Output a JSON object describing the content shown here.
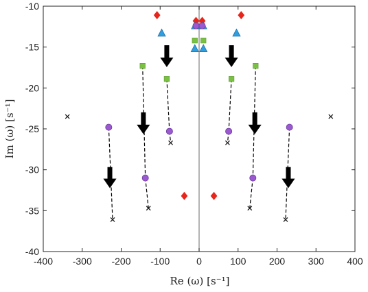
{
  "chart_data": {
    "type": "scatter",
    "xlabel": "Re (ω) [s⁻¹]",
    "ylabel": "Im (ω) [s⁻¹]",
    "xlim": [
      -400,
      400
    ],
    "ylim": [
      -40,
      -10
    ],
    "xticks": [
      -400,
      -300,
      -200,
      -100,
      0,
      100,
      200,
      300,
      400
    ],
    "yticks": [
      -10,
      -15,
      -20,
      -25,
      -30,
      -35,
      -40
    ],
    "grid": false,
    "zero_line_x": 0,
    "colors": {
      "red_diamond": "#e8251a",
      "blue_triangle": "#2f9fe0",
      "green_square": "#7ac143",
      "purple_circle": "#9b59d0",
      "cross": "#1a1a1a",
      "zero_line": "#8a8a8a",
      "arrow": "#000000"
    },
    "series": [
      {
        "marker": "diamond",
        "color": "#e8251a",
        "points": [
          [
            -108,
            -11.1
          ],
          [
            -8,
            -11.8
          ],
          [
            8,
            -11.8
          ],
          [
            108,
            -11.1
          ],
          [
            -38,
            -33.2
          ],
          [
            38,
            -33.2
          ]
        ]
      },
      {
        "marker": "triangle",
        "color": "#2f9fe0",
        "points": [
          [
            -96,
            -13.3
          ],
          [
            96,
            -13.3
          ],
          [
            -11,
            -15.2
          ],
          [
            11,
            -15.2
          ],
          [
            -10,
            -12.4
          ],
          [
            10,
            -12.4
          ]
        ]
      },
      {
        "marker": "square",
        "color": "#7ac143",
        "points": [
          [
            -145,
            -17.3
          ],
          [
            145,
            -17.3
          ],
          [
            -83,
            -18.9
          ],
          [
            83,
            -18.9
          ],
          [
            -11,
            -14.2
          ],
          [
            11,
            -14.2
          ]
        ]
      },
      {
        "marker": "circle",
        "color": "#9b59d0",
        "points": [
          [
            -8,
            -12.4
          ],
          [
            8,
            -12.4
          ],
          [
            -76,
            -25.3
          ],
          [
            76,
            -25.3
          ],
          [
            -138,
            -31.0
          ],
          [
            138,
            -31.0
          ],
          [
            -232,
            -24.8
          ],
          [
            232,
            -24.8
          ]
        ]
      },
      {
        "marker": "cross",
        "color": "#1a1a1a",
        "points": [
          [
            -338,
            -23.5
          ],
          [
            338,
            -23.5
          ],
          [
            -73,
            -26.7
          ],
          [
            73,
            -26.7
          ],
          [
            -130,
            -34.7
          ],
          [
            130,
            -34.7
          ],
          [
            -222,
            -36.1
          ],
          [
            222,
            -36.1
          ]
        ]
      }
    ],
    "dashed_links": [
      [
        [
          -145,
          -17.3
        ],
        [
          -138,
          -31.0
        ]
      ],
      [
        [
          145,
          -17.3
        ],
        [
          138,
          -31.0
        ]
      ],
      [
        [
          -83,
          -18.9
        ],
        [
          -76,
          -25.3
        ]
      ],
      [
        [
          83,
          -18.9
        ],
        [
          76,
          -25.3
        ]
      ],
      [
        [
          -232,
          -24.8
        ],
        [
          -222,
          -36.1
        ]
      ],
      [
        [
          232,
          -24.8
        ],
        [
          222,
          -36.1
        ]
      ],
      [
        [
          -138,
          -31.0
        ],
        [
          -130,
          -34.7
        ]
      ],
      [
        [
          138,
          -31.0
        ],
        [
          130,
          -34.7
        ]
      ],
      [
        [
          -76,
          -25.3
        ],
        [
          -73,
          -26.7
        ]
      ],
      [
        [
          76,
          -25.3
        ],
        [
          73,
          -26.7
        ]
      ]
    ],
    "arrows": [
      {
        "x": -83,
        "y_from": -14.8,
        "y_to": -17.4
      },
      {
        "x": 83,
        "y_from": -14.8,
        "y_to": -17.4
      },
      {
        "x": -143,
        "y_from": -23.0,
        "y_to": -25.6
      },
      {
        "x": 143,
        "y_from": -23.0,
        "y_to": -25.6
      },
      {
        "x": -229,
        "y_from": -29.7,
        "y_to": -32.2
      },
      {
        "x": 229,
        "y_from": -29.7,
        "y_to": -32.2
      }
    ]
  }
}
